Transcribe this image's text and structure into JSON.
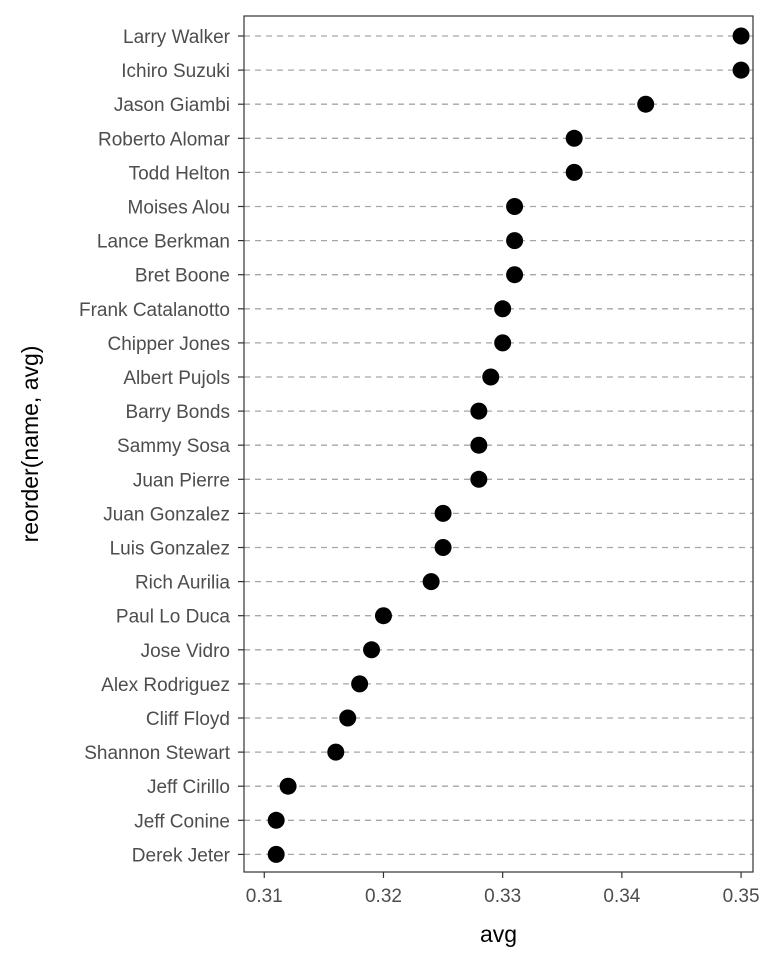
{
  "chart_data": {
    "type": "scatter",
    "xlabel": "avg",
    "ylabel": "reorder(name, avg)",
    "xlim": [
      0.3083,
      0.351
    ],
    "x_ticks": [
      "0.31",
      "0.32",
      "0.33",
      "0.34",
      "0.35"
    ],
    "x_tick_values": [
      0.31,
      0.32,
      0.33,
      0.34,
      0.35
    ],
    "grid": "dashed horizontal lines per category",
    "categories": [
      "Larry Walker",
      "Ichiro Suzuki",
      "Jason Giambi",
      "Roberto Alomar",
      "Todd Helton",
      "Moises Alou",
      "Lance Berkman",
      "Bret Boone",
      "Frank Catalanotto",
      "Chipper Jones",
      "Albert Pujols",
      "Barry Bonds",
      "Sammy Sosa",
      "Juan Pierre",
      "Juan Gonzalez",
      "Luis Gonzalez",
      "Rich Aurilia",
      "Paul Lo Duca",
      "Jose Vidro",
      "Alex Rodriguez",
      "Cliff Floyd",
      "Shannon Stewart",
      "Jeff Cirillo",
      "Jeff Conine",
      "Derek Jeter"
    ],
    "values": [
      0.35,
      0.35,
      0.342,
      0.336,
      0.336,
      0.331,
      0.331,
      0.331,
      0.33,
      0.33,
      0.329,
      0.328,
      0.328,
      0.328,
      0.325,
      0.325,
      0.324,
      0.32,
      0.319,
      0.318,
      0.317,
      0.316,
      0.312,
      0.311,
      0.311
    ],
    "colors": {
      "point": "#000000",
      "grid": "#a6a6a6",
      "panel_border": "#333333",
      "tick_text": "#4d4d4d"
    }
  }
}
